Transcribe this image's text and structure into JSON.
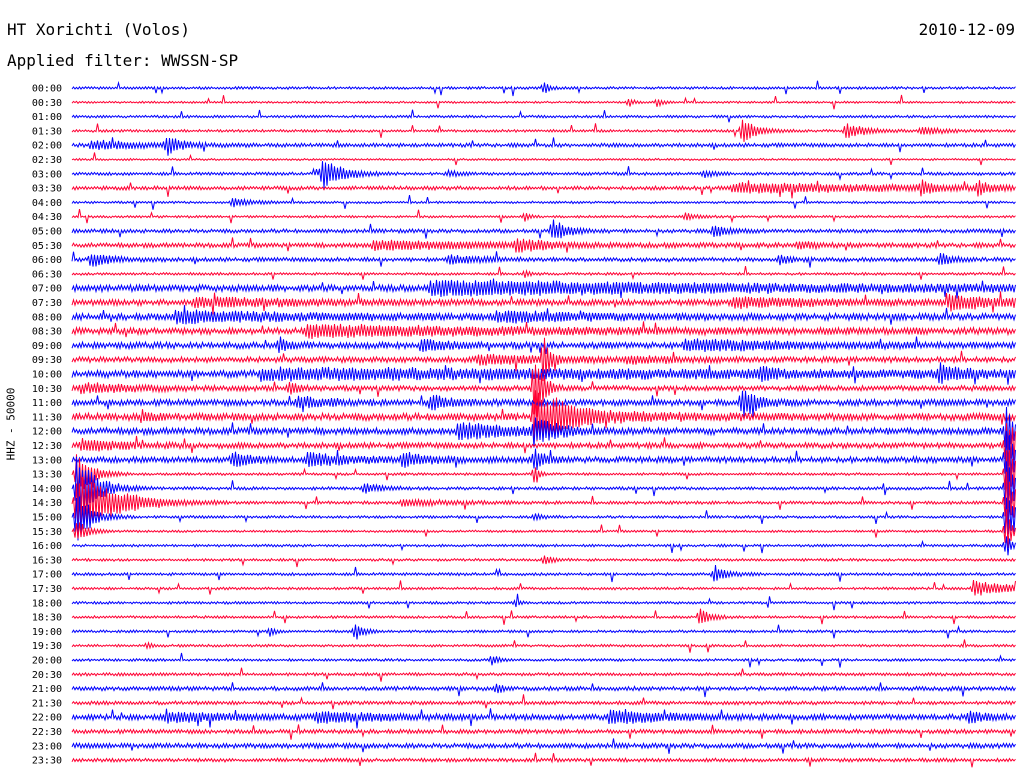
{
  "header": {
    "station": "HT Xorichti (Volos)",
    "date": "2010-12-09",
    "filter": "Applied filter: WWSSN-SP"
  },
  "chart_data": {
    "type": "line",
    "title": "HT Xorichti (Volos)",
    "ylabel": "HHZ - 50000",
    "colors": {
      "even_row": "#0000ff",
      "odd_row": "#ff0033"
    },
    "rows": [
      {
        "label": "00:00",
        "noise": 1.0,
        "events": [
          {
            "t": 0.5,
            "amp": 6,
            "dur": 0.005
          }
        ]
      },
      {
        "label": "00:30",
        "noise": 0.8,
        "events": [
          {
            "t": 0.59,
            "amp": 4,
            "dur": 0.005
          },
          {
            "t": 0.62,
            "amp": 4,
            "dur": 0.005
          }
        ]
      },
      {
        "label": "01:00",
        "noise": 1.0,
        "events": []
      },
      {
        "label": "01:30",
        "noise": 1.0,
        "events": [
          {
            "t": 0.71,
            "amp": 11,
            "dur": 0.015
          },
          {
            "t": 0.82,
            "amp": 7,
            "dur": 0.02
          },
          {
            "t": 0.9,
            "amp": 4,
            "dur": 0.02
          }
        ]
      },
      {
        "label": "02:00",
        "noise": 1.5,
        "events": [
          {
            "t": 0.02,
            "amp": 4,
            "dur": 0.05
          },
          {
            "t": 0.1,
            "amp": 9,
            "dur": 0.015
          }
        ]
      },
      {
        "label": "02:30",
        "noise": 0.8,
        "events": []
      },
      {
        "label": "03:00",
        "noise": 1.2,
        "events": [
          {
            "t": 0.265,
            "amp": 15,
            "dur": 0.02
          },
          {
            "t": 0.4,
            "amp": 3,
            "dur": 0.01
          },
          {
            "t": 0.67,
            "amp": 3,
            "dur": 0.01
          }
        ]
      },
      {
        "label": "03:30",
        "noise": 1.5,
        "events": [
          {
            "t": 0.7,
            "amp": 4,
            "dur": 0.22
          },
          {
            "t": 0.9,
            "amp": 7,
            "dur": 0.01
          },
          {
            "t": 0.96,
            "amp": 6,
            "dur": 0.01
          }
        ]
      },
      {
        "label": "04:00",
        "noise": 0.9,
        "events": [
          {
            "t": 0.17,
            "amp": 4,
            "dur": 0.02
          }
        ]
      },
      {
        "label": "04:30",
        "noise": 0.9,
        "events": [
          {
            "t": 0.48,
            "amp": 4,
            "dur": 0.005
          },
          {
            "t": 0.65,
            "amp": 4,
            "dur": 0.01
          }
        ]
      },
      {
        "label": "05:00",
        "noise": 1.5,
        "events": [
          {
            "t": 0.51,
            "amp": 10,
            "dur": 0.015
          },
          {
            "t": 0.68,
            "amp": 5,
            "dur": 0.015
          }
        ]
      },
      {
        "label": "05:30",
        "noise": 1.8,
        "events": [
          {
            "t": 0.32,
            "amp": 4,
            "dur": 0.12
          },
          {
            "t": 0.47,
            "amp": 5,
            "dur": 0.03
          },
          {
            "t": 0.77,
            "amp": 3,
            "dur": 0.02
          }
        ]
      },
      {
        "label": "06:00",
        "noise": 1.6,
        "events": [
          {
            "t": 0.02,
            "amp": 6,
            "dur": 0.02
          },
          {
            "t": 0.4,
            "amp": 4,
            "dur": 0.03
          },
          {
            "t": 0.75,
            "amp": 5,
            "dur": 0.01
          },
          {
            "t": 0.92,
            "amp": 6,
            "dur": 0.01
          }
        ]
      },
      {
        "label": "06:30",
        "noise": 1.0,
        "events": [
          {
            "t": 0.48,
            "amp": 3,
            "dur": 0.005
          }
        ]
      },
      {
        "label": "07:00",
        "noise": 2.6,
        "events": [
          {
            "t": 0.38,
            "amp": 6,
            "dur": 0.36
          }
        ]
      },
      {
        "label": "07:30",
        "noise": 2.4,
        "events": [
          {
            "t": 0.13,
            "amp": 4,
            "dur": 0.1
          },
          {
            "t": 0.7,
            "amp": 4,
            "dur": 0.1
          },
          {
            "t": 0.93,
            "amp": 6,
            "dur": 0.06
          }
        ]
      },
      {
        "label": "08:00",
        "noise": 2.6,
        "events": [
          {
            "t": 0.11,
            "amp": 5,
            "dur": 0.12
          },
          {
            "t": 0.45,
            "amp": 4,
            "dur": 0.1
          }
        ]
      },
      {
        "label": "08:30",
        "noise": 2.6,
        "events": [
          {
            "t": 0.25,
            "amp": 5,
            "dur": 0.2
          }
        ]
      },
      {
        "label": "09:00",
        "noise": 2.5,
        "events": [
          {
            "t": 0.22,
            "amp": 7,
            "dur": 0.01
          },
          {
            "t": 0.37,
            "amp": 5,
            "dur": 0.03
          },
          {
            "t": 0.65,
            "amp": 5,
            "dur": 0.1
          }
        ]
      },
      {
        "label": "09:30",
        "noise": 2.2,
        "events": [
          {
            "t": 0.43,
            "amp": 4,
            "dur": 0.08
          },
          {
            "t": 0.5,
            "amp": 26,
            "dur": 0.005
          },
          {
            "t": 0.59,
            "amp": 3,
            "dur": 0.04
          }
        ]
      },
      {
        "label": "10:00",
        "noise": 2.8,
        "events": [
          {
            "t": 0.2,
            "amp": 4,
            "dur": 0.6
          },
          {
            "t": 0.73,
            "amp": 6,
            "dur": 0.01
          },
          {
            "t": 0.92,
            "amp": 7,
            "dur": 0.02
          }
        ]
      },
      {
        "label": "10:30",
        "noise": 2.0,
        "events": [
          {
            "t": 0.01,
            "amp": 4,
            "dur": 0.06
          },
          {
            "t": 0.23,
            "amp": 5,
            "dur": 0.01
          },
          {
            "t": 0.49,
            "amp": 40,
            "dur": 0.008
          }
        ]
      },
      {
        "label": "11:00",
        "noise": 2.4,
        "events": [
          {
            "t": 0.24,
            "amp": 5,
            "dur": 0.03
          },
          {
            "t": 0.38,
            "amp": 7,
            "dur": 0.02
          },
          {
            "t": 0.71,
            "amp": 14,
            "dur": 0.015
          }
        ]
      },
      {
        "label": "11:30",
        "noise": 2.8,
        "events": [
          {
            "t": 0.075,
            "amp": 5,
            "dur": 0.01
          },
          {
            "t": 0.49,
            "amp": 24,
            "dur": 0.02
          },
          {
            "t": 0.51,
            "amp": 8,
            "dur": 0.08
          }
        ]
      },
      {
        "label": "12:00",
        "noise": 2.6,
        "events": [
          {
            "t": 0.41,
            "amp": 8,
            "dur": 0.05
          },
          {
            "t": 0.49,
            "amp": 12,
            "dur": 0.02
          },
          {
            "t": 0.99,
            "amp": 24,
            "dur": 0.01
          }
        ]
      },
      {
        "label": "12:30",
        "noise": 2.2,
        "events": [
          {
            "t": 0.01,
            "amp": 5,
            "dur": 0.04
          },
          {
            "t": 0.99,
            "amp": 30,
            "dur": 0.01
          }
        ]
      },
      {
        "label": "13:00",
        "noise": 2.3,
        "events": [
          {
            "t": 0.17,
            "amp": 6,
            "dur": 0.02
          },
          {
            "t": 0.25,
            "amp": 6,
            "dur": 0.04
          },
          {
            "t": 0.35,
            "amp": 6,
            "dur": 0.03
          },
          {
            "t": 0.49,
            "amp": 10,
            "dur": 0.01
          },
          {
            "t": 0.99,
            "amp": 30,
            "dur": 0.01
          }
        ]
      },
      {
        "label": "13:30",
        "noise": 1.0,
        "events": [
          {
            "t": 0.005,
            "amp": 22,
            "dur": 0.015
          },
          {
            "t": 0.49,
            "amp": 8,
            "dur": 0.005
          },
          {
            "t": 0.99,
            "amp": 30,
            "dur": 0.01
          }
        ]
      },
      {
        "label": "14:00",
        "noise": 1.2,
        "events": [
          {
            "t": 0.005,
            "amp": 30,
            "dur": 0.02
          },
          {
            "t": 0.31,
            "amp": 4,
            "dur": 0.02
          },
          {
            "t": 0.99,
            "amp": 30,
            "dur": 0.01
          }
        ]
      },
      {
        "label": "14:30",
        "noise": 1.2,
        "events": [
          {
            "t": 0.005,
            "amp": 30,
            "dur": 0.04
          },
          {
            "t": 0.35,
            "amp": 3,
            "dur": 0.05
          },
          {
            "t": 0.99,
            "amp": 30,
            "dur": 0.01
          }
        ]
      },
      {
        "label": "15:00",
        "noise": 1.0,
        "events": [
          {
            "t": 0.005,
            "amp": 24,
            "dur": 0.015
          },
          {
            "t": 0.49,
            "amp": 3,
            "dur": 0.01
          },
          {
            "t": 0.99,
            "amp": 30,
            "dur": 0.01
          }
        ]
      },
      {
        "label": "15:30",
        "noise": 0.9,
        "events": [
          {
            "t": 0.005,
            "amp": 12,
            "dur": 0.01
          },
          {
            "t": 0.99,
            "amp": 20,
            "dur": 0.005
          }
        ]
      },
      {
        "label": "16:00",
        "noise": 1.0,
        "events": [
          {
            "t": 0.99,
            "amp": 12,
            "dur": 0.005
          }
        ]
      },
      {
        "label": "16:30",
        "noise": 1.0,
        "events": [
          {
            "t": 0.5,
            "amp": 4,
            "dur": 0.01
          }
        ]
      },
      {
        "label": "17:00",
        "noise": 1.1,
        "events": [
          {
            "t": 0.68,
            "amp": 6,
            "dur": 0.015
          }
        ]
      },
      {
        "label": "17:30",
        "noise": 1.0,
        "events": [
          {
            "t": 0.955,
            "amp": 7,
            "dur": 0.04
          }
        ]
      },
      {
        "label": "18:00",
        "noise": 1.0,
        "events": [
          {
            "t": 0.47,
            "amp": 3,
            "dur": 0.005
          }
        ]
      },
      {
        "label": "18:30",
        "noise": 1.0,
        "events": [
          {
            "t": 0.665,
            "amp": 9,
            "dur": 0.01
          }
        ]
      },
      {
        "label": "19:00",
        "noise": 1.0,
        "events": [
          {
            "t": 0.3,
            "amp": 9,
            "dur": 0.008
          },
          {
            "t": 0.21,
            "amp": 4,
            "dur": 0.005
          }
        ]
      },
      {
        "label": "19:30",
        "noise": 1.0,
        "events": [
          {
            "t": 0.08,
            "amp": 3,
            "dur": 0.005
          }
        ]
      },
      {
        "label": "20:00",
        "noise": 1.0,
        "events": [
          {
            "t": 0.445,
            "amp": 5,
            "dur": 0.008
          }
        ]
      },
      {
        "label": "20:30",
        "noise": 1.2,
        "events": []
      },
      {
        "label": "21:00",
        "noise": 1.6,
        "events": [
          {
            "t": 0.45,
            "amp": 5,
            "dur": 0.005
          }
        ]
      },
      {
        "label": "21:30",
        "noise": 1.4,
        "events": []
      },
      {
        "label": "22:00",
        "noise": 2.2,
        "events": [
          {
            "t": 0.1,
            "amp": 4,
            "dur": 0.06
          },
          {
            "t": 0.26,
            "amp": 5,
            "dur": 0.06
          },
          {
            "t": 0.57,
            "amp": 6,
            "dur": 0.06
          },
          {
            "t": 0.95,
            "amp": 5,
            "dur": 0.02
          }
        ]
      },
      {
        "label": "22:30",
        "noise": 1.6,
        "events": []
      },
      {
        "label": "23:00",
        "noise": 1.9,
        "events": []
      },
      {
        "label": "23:30",
        "noise": 1.4,
        "events": []
      }
    ]
  }
}
